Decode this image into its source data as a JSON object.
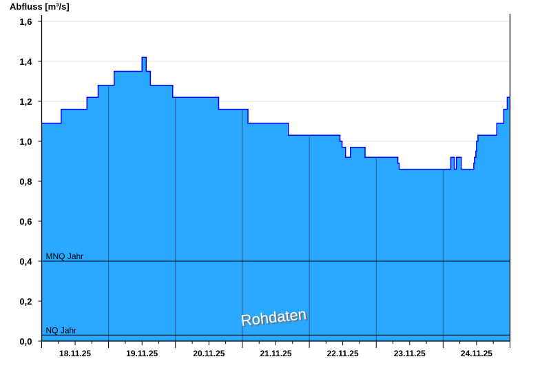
{
  "chart_data": {
    "type": "area",
    "step": true,
    "ylabel": "Abfluss [m³/s]",
    "ylim": [
      0,
      1.6
    ],
    "yticks": [
      "0,0",
      "0,2",
      "0,4",
      "0,6",
      "0,8",
      "1,0",
      "1,2",
      "1,4",
      "1,6"
    ],
    "ytick_values": [
      0,
      0.2,
      0.4,
      0.6,
      0.8,
      1.0,
      1.2,
      1.4,
      1.6
    ],
    "xlim": [
      "18.11.25 00:00",
      "25.11.25 00:00"
    ],
    "xticks": [
      "18.11.25",
      "19.11.25",
      "20.11.25",
      "21.11.25",
      "22.11.25",
      "23.11.25",
      "24.11.25"
    ],
    "grid": true,
    "fill_color": "#2aa8ff",
    "line_color": "#0000ff",
    "series": [
      {
        "x": [
          "18.11.25 00:00",
          "18.11.25 07:00",
          "18.11.25 16:15",
          "18.11.25 20:15",
          "19.11.25 02:00",
          "19.11.25 12:00",
          "19.11.25 13:30",
          "19.11.25 15:00",
          "19.11.25 23:00",
          "20.11.25 15:30",
          "21.11.25 02:00",
          "21.11.25 16:30",
          "22.11.25 11:00",
          "22.11.25 11:45",
          "22.11.25 13:00",
          "22.11.25 14:45",
          "22.11.25 20:00",
          "23.11.25 07:45",
          "23.11.25 08:15",
          "24.11.25 02:45",
          "24.11.25 04:00",
          "24.11.25 04:45",
          "24.11.25 06:30",
          "24.11.25 11:00",
          "24.11.25 11:15",
          "24.11.25 11:45",
          "24.11.25 12:00",
          "24.11.25 12:30",
          "24.11.25 19:15",
          "24.11.25 21:45",
          "24.11.25 23:00"
        ],
        "y": [
          1.09,
          1.16,
          1.22,
          1.28,
          1.35,
          1.42,
          1.35,
          1.28,
          1.22,
          1.16,
          1.09,
          1.03,
          1.0,
          0.97,
          0.92,
          0.97,
          0.92,
          0.89,
          0.86,
          0.92,
          0.86,
          0.92,
          0.86,
          0.89,
          0.92,
          0.95,
          1.0,
          1.03,
          1.09,
          1.16,
          1.22
        ]
      }
    ],
    "reference_lines": [
      {
        "name": "MNQ Jahr",
        "value": 0.4
      },
      {
        "name": "NQ Jahr",
        "value": 0.03
      }
    ],
    "watermark": "Rohdaten"
  }
}
